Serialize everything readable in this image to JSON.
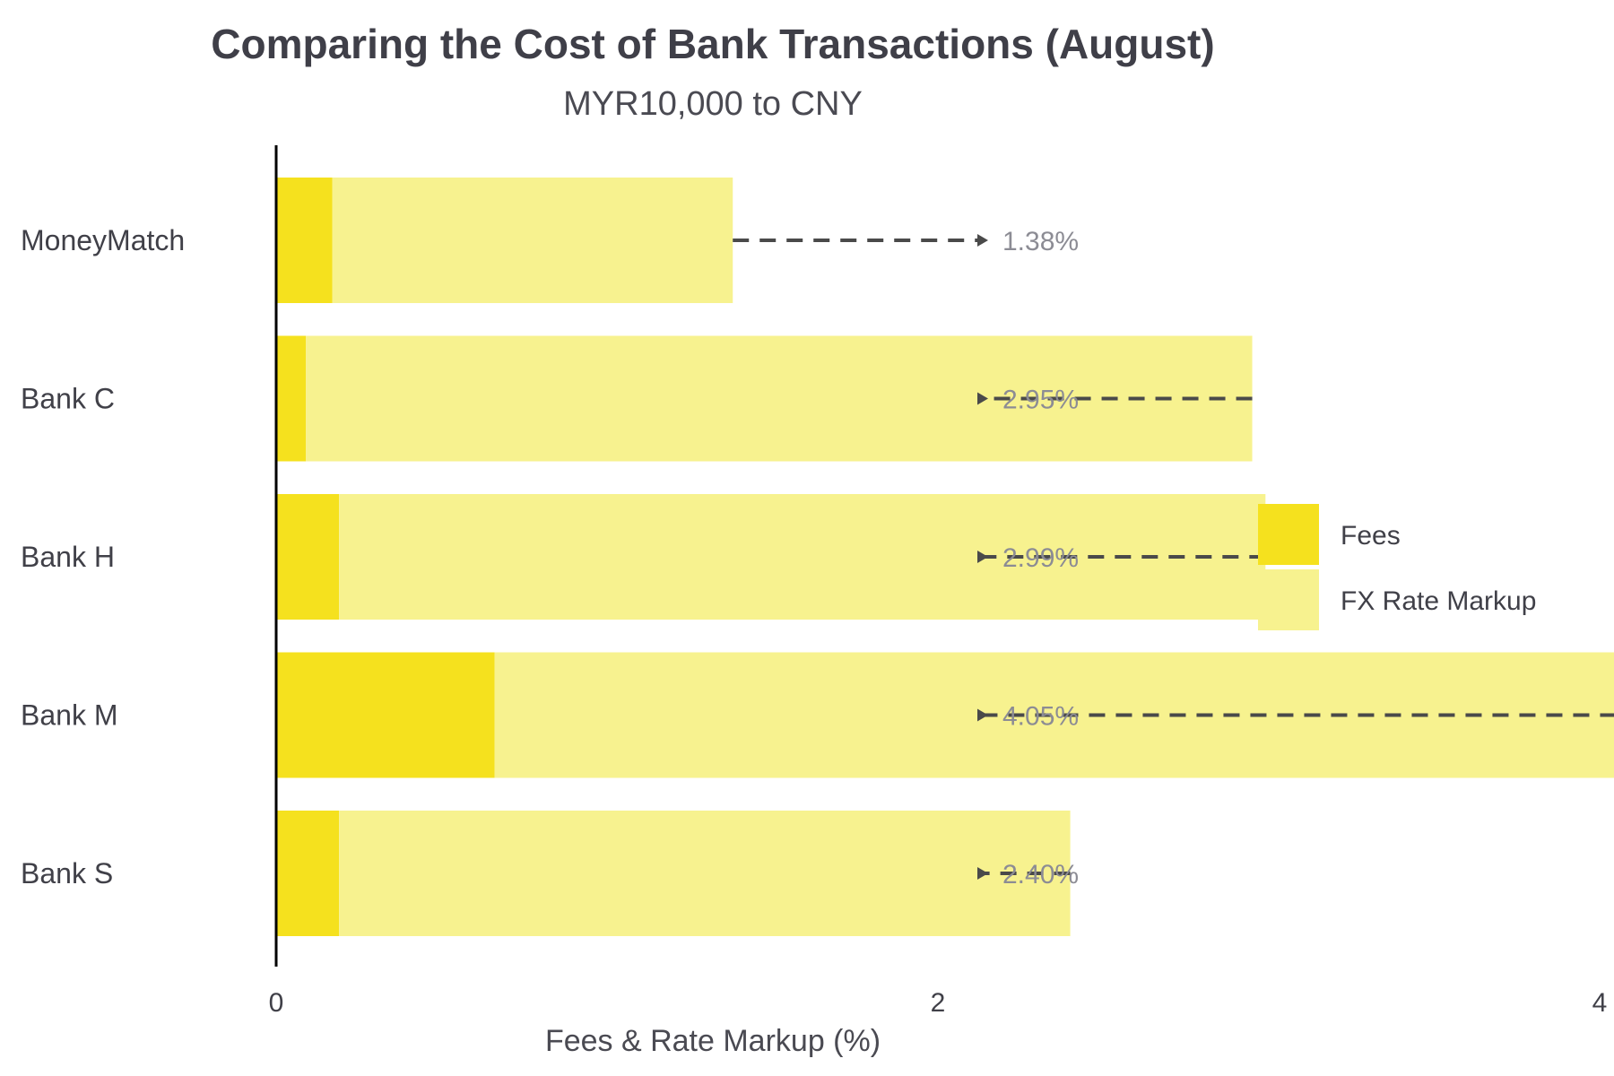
{
  "chart_data": {
    "type": "bar",
    "orientation": "horizontal",
    "stacked": true,
    "title": "Comparing the Cost of Bank Transactions (August)",
    "subtitle": "MYR10,000 to CNY",
    "xlabel": "Fees & Rate Markup (%)",
    "ylabel": "",
    "xlim": [
      0,
      4.3
    ],
    "xticks": [
      0,
      2,
      4
    ],
    "grid": false,
    "legend_position": "right",
    "categories": [
      "MoneyMatch",
      "Bank C",
      "Bank H",
      "Bank M",
      "Bank S"
    ],
    "series": [
      {
        "name": "Fees",
        "color": "#f5e11e",
        "values": [
          0.17,
          0.09,
          0.19,
          0.66,
          0.19
        ]
      },
      {
        "name": "FX Rate Markup",
        "color": "#f7f28f",
        "values": [
          1.21,
          2.86,
          2.8,
          3.39,
          2.21
        ]
      }
    ],
    "totals": [
      1.38,
      2.95,
      2.99,
      4.05,
      2.4
    ],
    "total_labels": [
      "1.38%",
      "2.95%",
      "2.99%",
      "4.05%",
      "2.40%"
    ]
  }
}
